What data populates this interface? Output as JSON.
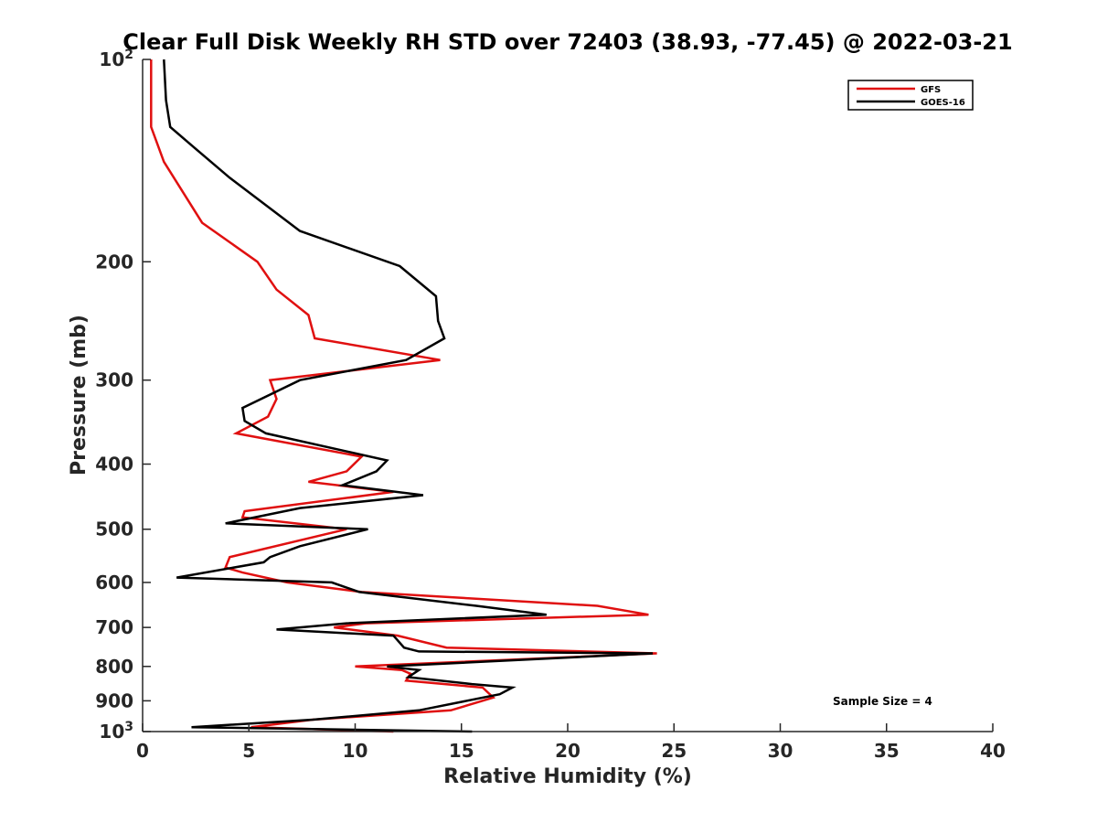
{
  "chart_data": {
    "type": "line",
    "title": "Clear Full Disk Weekly RH STD over 72403 (38.93, -77.45) @ 2022-03-21",
    "xlabel": "Relative Humidity (%)",
    "ylabel": "Pressure (mb)",
    "xlim": [
      0,
      40
    ],
    "ylim": [
      100,
      1000
    ],
    "y_scale": "log",
    "y_reversed": true,
    "x_ticks": [
      "0",
      "5",
      "10",
      "15",
      "20",
      "25",
      "30",
      "35",
      "40"
    ],
    "y_ticks": [
      {
        "value": 100,
        "base": "10",
        "exp": "2"
      },
      {
        "value": 200,
        "label": "200"
      },
      {
        "value": 300,
        "label": "300"
      },
      {
        "value": 400,
        "label": "400"
      },
      {
        "value": 500,
        "label": "500"
      },
      {
        "value": 600,
        "label": "600"
      },
      {
        "value": 700,
        "label": "700"
      },
      {
        "value": 800,
        "label": "800"
      },
      {
        "value": 900,
        "label": "900"
      },
      {
        "value": 1000,
        "base": "10",
        "exp": "3"
      }
    ],
    "grid": false,
    "legend_position": "top-right",
    "annotation": "Sample Size = 4",
    "series": [
      {
        "name": "GFS",
        "color": "#e01010",
        "points": [
          [
            0.4,
            100
          ],
          [
            0.4,
            126
          ],
          [
            1.0,
            142
          ],
          [
            2.8,
            175
          ],
          [
            5.4,
            200
          ],
          [
            6.3,
            220
          ],
          [
            7.8,
            240
          ],
          [
            8.1,
            260
          ],
          [
            14.0,
            280
          ],
          [
            6.0,
            300
          ],
          [
            6.3,
            320
          ],
          [
            5.9,
            340
          ],
          [
            4.4,
            360
          ],
          [
            10.3,
            390
          ],
          [
            9.6,
            410
          ],
          [
            7.8,
            425
          ],
          [
            11.8,
            440
          ],
          [
            4.8,
            470
          ],
          [
            4.7,
            480
          ],
          [
            9.6,
            500
          ],
          [
            4.1,
            550
          ],
          [
            3.9,
            570
          ],
          [
            4.7,
            580
          ],
          [
            6.8,
            600
          ],
          [
            10.3,
            620
          ],
          [
            21.4,
            650
          ],
          [
            23.8,
            670
          ],
          [
            10.5,
            690
          ],
          [
            9.0,
            700
          ],
          [
            12.0,
            720
          ],
          [
            14.3,
            750
          ],
          [
            24.2,
            765
          ],
          [
            10.0,
            800
          ],
          [
            12.2,
            810
          ],
          [
            12.6,
            820
          ],
          [
            12.4,
            840
          ],
          [
            16.0,
            860
          ],
          [
            16.5,
            890
          ],
          [
            14.5,
            930
          ],
          [
            8.0,
            960
          ],
          [
            5.1,
            985
          ],
          [
            11.8,
            1000
          ]
        ]
      },
      {
        "name": "GOES-16",
        "color": "#000000",
        "points": [
          [
            1.0,
            100
          ],
          [
            1.1,
            115
          ],
          [
            1.3,
            126
          ],
          [
            2.4,
            135
          ],
          [
            4.1,
            150
          ],
          [
            7.4,
            180
          ],
          [
            12.1,
            203
          ],
          [
            13.8,
            225
          ],
          [
            13.9,
            245
          ],
          [
            14.2,
            260
          ],
          [
            12.4,
            280
          ],
          [
            7.4,
            300
          ],
          [
            4.7,
            330
          ],
          [
            4.8,
            345
          ],
          [
            5.8,
            360
          ],
          [
            11.5,
            395
          ],
          [
            11.0,
            410
          ],
          [
            9.4,
            430
          ],
          [
            13.2,
            445
          ],
          [
            7.4,
            465
          ],
          [
            3.9,
            490
          ],
          [
            10.6,
            500
          ],
          [
            7.4,
            530
          ],
          [
            6.0,
            550
          ],
          [
            5.7,
            560
          ],
          [
            1.6,
            590
          ],
          [
            8.9,
            600
          ],
          [
            10.2,
            620
          ],
          [
            15.7,
            650
          ],
          [
            19.0,
            670
          ],
          [
            9.6,
            690
          ],
          [
            6.3,
            705
          ],
          [
            11.8,
            720
          ],
          [
            12.3,
            750
          ],
          [
            13.0,
            760
          ],
          [
            24.0,
            765
          ],
          [
            11.5,
            800
          ],
          [
            13.0,
            810
          ],
          [
            12.5,
            830
          ],
          [
            15.5,
            850
          ],
          [
            17.4,
            860
          ],
          [
            16.8,
            880
          ],
          [
            13.0,
            930
          ],
          [
            8.0,
            960
          ],
          [
            2.3,
            985
          ],
          [
            15.5,
            1000
          ]
        ]
      }
    ]
  }
}
